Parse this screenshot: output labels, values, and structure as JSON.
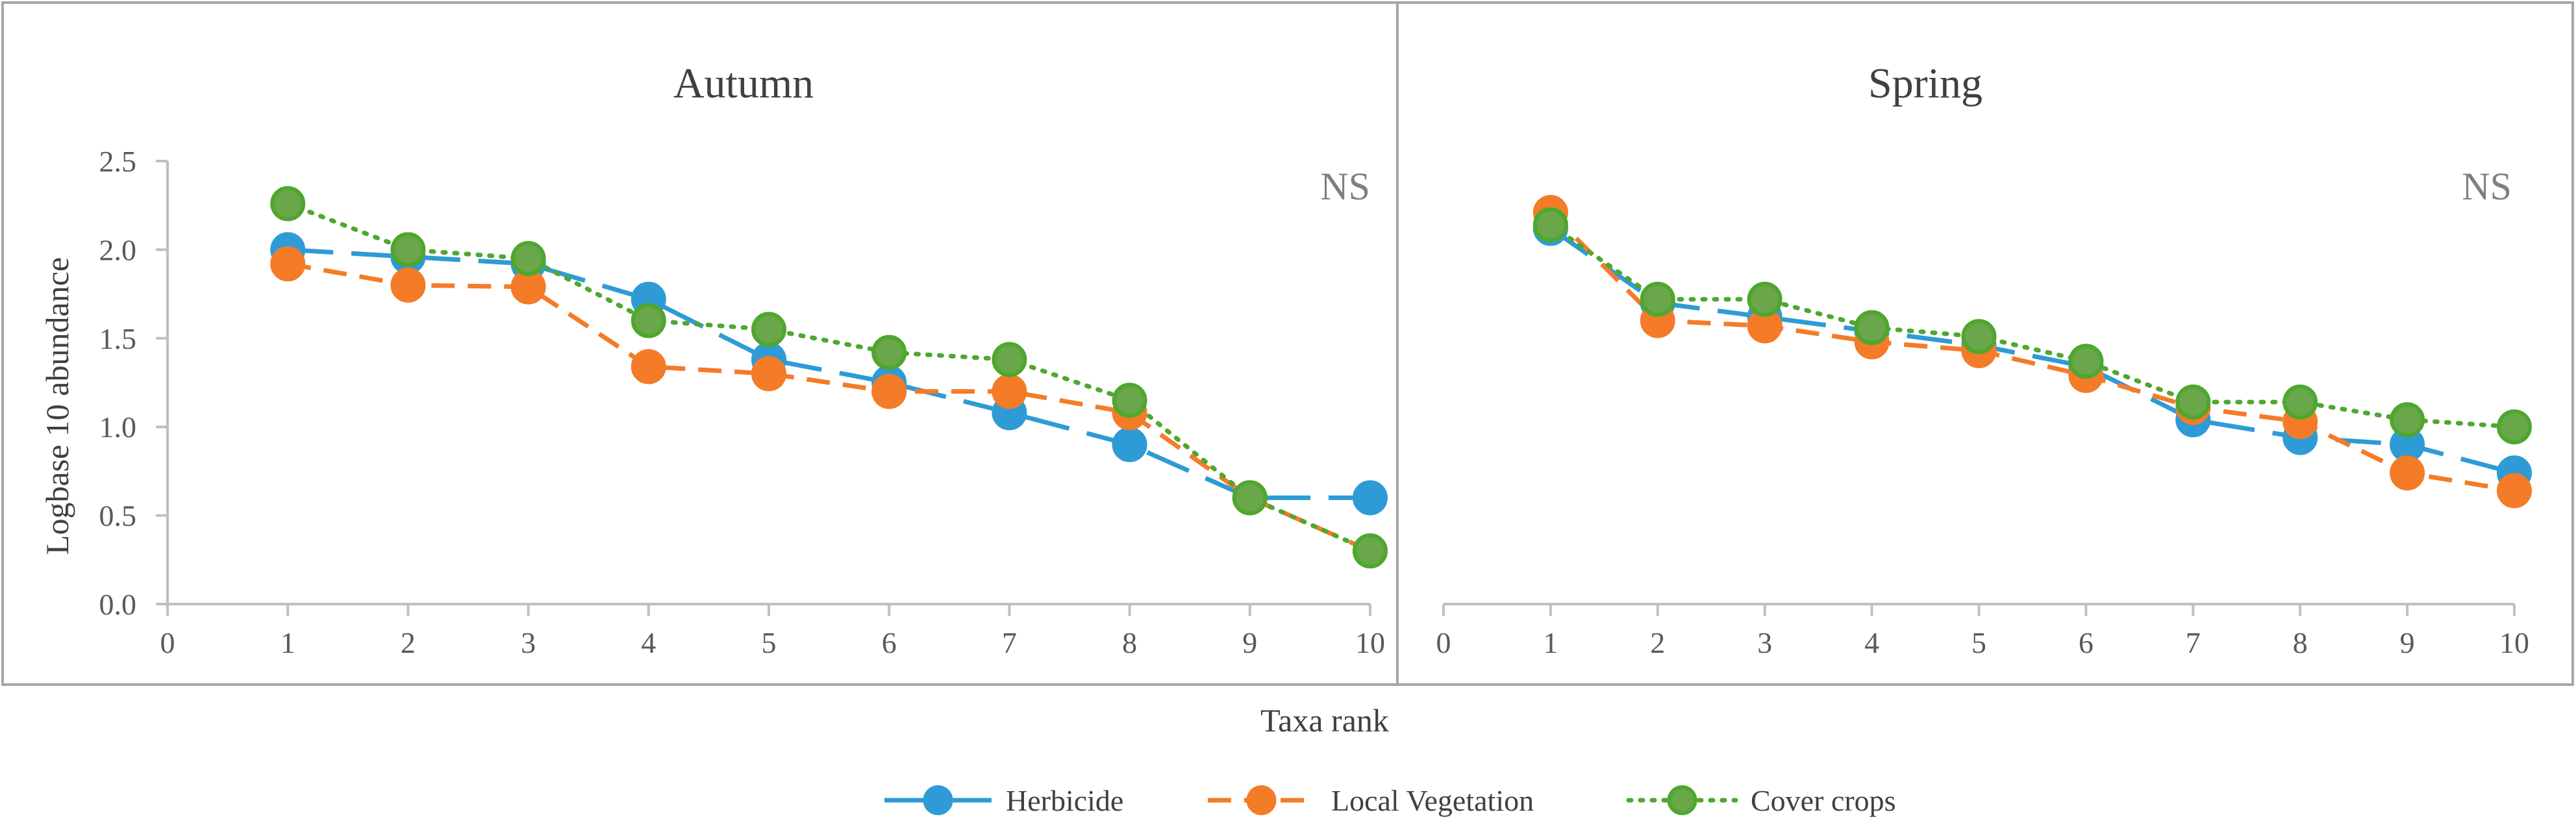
{
  "figure": {
    "shared_xlabel": "Taxa rank",
    "legend": [
      {
        "name": "Herbicide",
        "color": "#2e9bd6",
        "dash": "70 28"
      },
      {
        "name": "Local Vegetation",
        "color": "#f47b27",
        "dash": "36 20"
      },
      {
        "name": "Cover crops",
        "color": "#4ea72e",
        "dash": "4 14",
        "marker_fill": "#6aa64a"
      }
    ]
  },
  "chart_data": [
    {
      "type": "line",
      "title": "Autumn",
      "annotation": "NS",
      "xlabel": "Taxa rank",
      "ylabel": "Logbase 10 abundance",
      "xlim": [
        0,
        10
      ],
      "ylim": [
        0,
        2.5
      ],
      "x_ticks": [
        "0",
        "1",
        "2",
        "3",
        "4",
        "5",
        "6",
        "7",
        "8",
        "9",
        "10"
      ],
      "y_ticks": [
        "0.0",
        "0.5",
        "1.0",
        "1.5",
        "2.0",
        "2.5"
      ],
      "grid": false,
      "legend_position": "bottom",
      "x": [
        1,
        2,
        3,
        4,
        5,
        6,
        7,
        8,
        9,
        10
      ],
      "series": [
        {
          "name": "Herbicide",
          "values": [
            2.0,
            1.96,
            1.92,
            1.72,
            1.38,
            1.25,
            1.08,
            0.9,
            0.6,
            0.6
          ]
        },
        {
          "name": "Local Vegetation",
          "values": [
            1.92,
            1.8,
            1.79,
            1.34,
            1.3,
            1.2,
            1.2,
            1.08,
            0.6,
            0.3
          ]
        },
        {
          "name": "Cover crops",
          "values": [
            2.26,
            2.0,
            1.95,
            1.6,
            1.55,
            1.42,
            1.38,
            1.15,
            0.6,
            0.3
          ]
        }
      ]
    },
    {
      "type": "line",
      "title": "Spring",
      "annotation": "NS",
      "xlabel": "Taxa rank",
      "ylabel": "",
      "xlim": [
        0,
        10
      ],
      "ylim": [
        0,
        2.5
      ],
      "x_ticks": [
        "0",
        "1",
        "2",
        "3",
        "4",
        "5",
        "6",
        "7",
        "8",
        "9",
        "10"
      ],
      "y_ticks": [],
      "grid": false,
      "legend_position": "bottom",
      "x": [
        1,
        2,
        3,
        4,
        5,
        6,
        7,
        8,
        9,
        10
      ],
      "series": [
        {
          "name": "Herbicide",
          "values": [
            2.12,
            1.7,
            1.62,
            1.54,
            1.46,
            1.34,
            1.04,
            0.94,
            0.9,
            0.74
          ]
        },
        {
          "name": "Local Vegetation",
          "values": [
            2.21,
            1.6,
            1.57,
            1.48,
            1.43,
            1.29,
            1.11,
            1.03,
            0.74,
            0.64
          ]
        },
        {
          "name": "Cover crops",
          "values": [
            2.14,
            1.72,
            1.72,
            1.56,
            1.51,
            1.37,
            1.14,
            1.14,
            1.04,
            1.0
          ]
        }
      ]
    }
  ]
}
